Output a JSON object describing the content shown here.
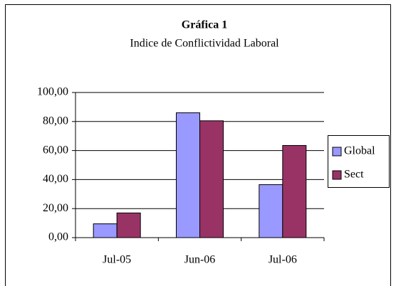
{
  "chart_data": {
    "type": "bar",
    "title": "Gráfica 1",
    "subtitle": "Indice de Conflictividad Laboral",
    "categories": [
      "Jul-05",
      "Jun-06",
      "Jul-06"
    ],
    "series": [
      {
        "name": "Global",
        "color": "#9999ff",
        "values": [
          9.5,
          86,
          36.5
        ]
      },
      {
        "name": "Sect",
        "color": "#993366",
        "values": [
          17,
          80.5,
          63.5
        ]
      }
    ],
    "ylim": [
      0,
      100
    ],
    "yticks": [
      {
        "value": 0,
        "label": "0,00"
      },
      {
        "value": 20,
        "label": "20,00"
      },
      {
        "value": 40,
        "label": "40,00"
      },
      {
        "value": 60,
        "label": "60,00"
      },
      {
        "value": 80,
        "label": "80,00"
      },
      {
        "value": 100,
        "label": "100,00"
      }
    ],
    "grid": true,
    "legend": "right"
  }
}
